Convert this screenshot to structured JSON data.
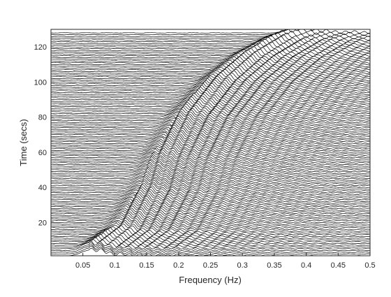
{
  "chart_data": {
    "type": "line",
    "subtype": "waterfall-trace-plot",
    "title": "",
    "xlabel": "Frequency (Hz)",
    "ylabel": "Time (secs)",
    "xlim": [
      0,
      0.5
    ],
    "ylim": [
      1,
      130
    ],
    "x_ticks": [
      0.05,
      0.1,
      0.15,
      0.2,
      0.25,
      0.3,
      0.35,
      0.4,
      0.45,
      0.5
    ],
    "x_tick_labels": [
      "0.05",
      "0.1",
      "0.15",
      "0.2",
      "0.25",
      "0.3",
      "0.35",
      "0.4",
      "0.45",
      "0.5"
    ],
    "y_ticks": [
      20,
      40,
      60,
      80,
      100,
      120
    ],
    "y_tick_labels": [
      "20",
      "40",
      "60",
      "80",
      "100",
      "120"
    ],
    "grid": false,
    "line_color": "#000000",
    "trace_time_step_secs": 1,
    "trace_count": 128,
    "trace_amplitude_secs": 3.2,
    "chirp_curve_points": [
      {
        "frequency": 0.06,
        "time": 5
      },
      {
        "frequency": 0.1,
        "time": 15
      },
      {
        "frequency": 0.14,
        "time": 38
      },
      {
        "frequency": 0.16,
        "time": 56
      },
      {
        "frequency": 0.2,
        "time": 80
      },
      {
        "frequency": 0.25,
        "time": 100
      },
      {
        "frequency": 0.3,
        "time": 114
      },
      {
        "frequency": 0.35,
        "time": 124
      },
      {
        "frequency": 0.4,
        "time": 130
      }
    ],
    "chirp_band_width_hz": 0.012
  }
}
